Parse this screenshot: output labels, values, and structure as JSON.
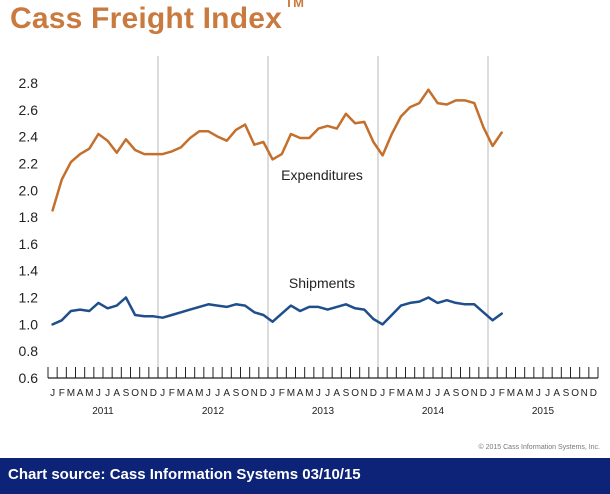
{
  "header": {
    "title": "Cass Freight Index",
    "trademark": "TM"
  },
  "copyright": "© 2015 Cass Information Systems, Inc.",
  "footer": {
    "source": "Chart source: Cass Information Systems 03/10/15"
  },
  "colors": {
    "expenditures": "#c46f2c",
    "shipments": "#1f4e8c",
    "title": "#c87a3f",
    "footer_bg": "#0d2377"
  },
  "chart_data": {
    "type": "line",
    "title": "Cass Freight Index",
    "xlabel": "",
    "ylabel": "",
    "ylim": [
      0.6,
      2.9
    ],
    "yticks": [
      "0.6",
      "0.8",
      "1.0",
      "1.2",
      "1.4",
      "1.6",
      "1.8",
      "2.0",
      "2.2",
      "2.4",
      "2.6",
      "2.8"
    ],
    "month_letters": [
      "J",
      "F",
      "M",
      "A",
      "M",
      "J",
      "J",
      "A",
      "S",
      "O",
      "N",
      "D"
    ],
    "years": [
      "2011",
      "2012",
      "2013",
      "2014",
      "2015"
    ],
    "grid": "vertical lines at year boundaries",
    "series": [
      {
        "name": "Expenditures",
        "values": [
          1.85,
          2.08,
          2.21,
          2.27,
          2.31,
          2.42,
          2.37,
          2.28,
          2.38,
          2.3,
          2.27,
          2.27,
          2.27,
          2.29,
          2.32,
          2.39,
          2.44,
          2.44,
          2.4,
          2.37,
          2.45,
          2.49,
          2.34,
          2.36,
          2.23,
          2.27,
          2.42,
          2.39,
          2.39,
          2.46,
          2.48,
          2.46,
          2.57,
          2.5,
          2.51,
          2.36,
          2.26,
          2.42,
          2.55,
          2.62,
          2.65,
          2.75,
          2.65,
          2.64,
          2.67,
          2.67,
          2.65,
          2.47,
          2.33,
          2.43
        ]
      },
      {
        "name": "Shipments",
        "values": [
          1.0,
          1.03,
          1.1,
          1.11,
          1.1,
          1.16,
          1.12,
          1.14,
          1.2,
          1.07,
          1.06,
          1.06,
          1.05,
          1.07,
          1.09,
          1.11,
          1.13,
          1.15,
          1.14,
          1.13,
          1.15,
          1.14,
          1.09,
          1.07,
          1.02,
          1.08,
          1.14,
          1.1,
          1.13,
          1.13,
          1.11,
          1.13,
          1.15,
          1.12,
          1.11,
          1.04,
          1.0,
          1.07,
          1.14,
          1.16,
          1.17,
          1.2,
          1.16,
          1.18,
          1.16,
          1.15,
          1.15,
          1.09,
          1.03,
          1.08
        ]
      }
    ]
  }
}
